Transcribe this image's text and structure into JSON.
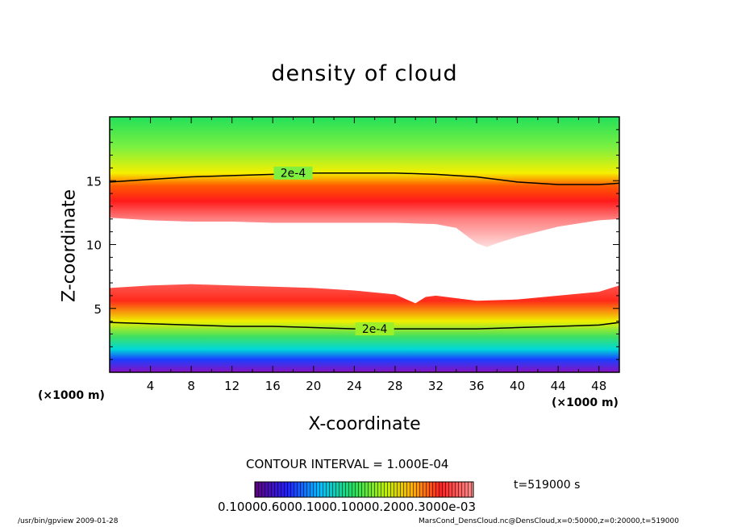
{
  "chart_data": {
    "type": "heatmap",
    "title": "density of cloud",
    "xlabel": "X-coordinate",
    "ylabel": "Z-coordinate",
    "x_unit_note": "(×1000 m)",
    "xlim": [
      0,
      50
    ],
    "ylim": [
      0,
      20
    ],
    "x_ticks": [
      4,
      8,
      12,
      16,
      20,
      24,
      28,
      32,
      36,
      40,
      44,
      48
    ],
    "y_ticks": [
      5,
      10,
      15
    ],
    "contours": [
      {
        "label": "2e-4",
        "level": 0.0002,
        "points": [
          [
            0,
            14.9
          ],
          [
            4,
            15.1
          ],
          [
            8,
            15.3
          ],
          [
            12,
            15.4
          ],
          [
            16,
            15.5
          ],
          [
            20,
            15.6
          ],
          [
            24,
            15.6
          ],
          [
            28,
            15.6
          ],
          [
            32,
            15.5
          ],
          [
            36,
            15.3
          ],
          [
            40,
            14.9
          ],
          [
            44,
            14.7
          ],
          [
            48,
            14.7
          ],
          [
            50,
            14.8
          ]
        ]
      },
      {
        "label": "2e-4",
        "level": 0.0002,
        "points": [
          [
            0,
            3.9
          ],
          [
            4,
            3.8
          ],
          [
            8,
            3.7
          ],
          [
            12,
            3.6
          ],
          [
            16,
            3.6
          ],
          [
            20,
            3.5
          ],
          [
            24,
            3.4
          ],
          [
            28,
            3.4
          ],
          [
            30,
            3.4
          ],
          [
            32,
            3.4
          ],
          [
            36,
            3.4
          ],
          [
            40,
            3.5
          ],
          [
            44,
            3.6
          ],
          [
            48,
            3.7
          ],
          [
            50,
            3.9
          ]
        ]
      }
    ],
    "cloud_free_band": {
      "bottom": [
        [
          0,
          6.6
        ],
        [
          4,
          6.8
        ],
        [
          8,
          6.9
        ],
        [
          12,
          6.8
        ],
        [
          16,
          6.7
        ],
        [
          20,
          6.6
        ],
        [
          24,
          6.4
        ],
        [
          28,
          6.1
        ],
        [
          30,
          5.4
        ],
        [
          31,
          5.9
        ],
        [
          32,
          6.0
        ],
        [
          36,
          5.6
        ],
        [
          40,
          5.7
        ],
        [
          44,
          6.0
        ],
        [
          48,
          6.3
        ],
        [
          50,
          6.8
        ]
      ],
      "top": [
        [
          0,
          12.1
        ],
        [
          4,
          11.9
        ],
        [
          8,
          11.8
        ],
        [
          12,
          11.8
        ],
        [
          16,
          11.7
        ],
        [
          20,
          11.7
        ],
        [
          24,
          11.7
        ],
        [
          28,
          11.7
        ],
        [
          32,
          11.6
        ],
        [
          34,
          11.3
        ],
        [
          36,
          10.1
        ],
        [
          37,
          9.8
        ],
        [
          38,
          10.1
        ],
        [
          40,
          10.6
        ],
        [
          44,
          11.4
        ],
        [
          48,
          11.9
        ],
        [
          50,
          12.0
        ]
      ]
    },
    "contour_interval": "CONTOUR INTERVAL = 1.000E-04",
    "time_label": "t=519000 s",
    "colorbar_labels": "0.10000.6000.1000.10000.2000.3000e-03"
  },
  "footer": {
    "left": "/usr/bin/gpview   2009-01-28",
    "right": "MarsCond_DensCloud.nc@DensCloud,x=0:50000,z=0:20000,t=519000"
  }
}
